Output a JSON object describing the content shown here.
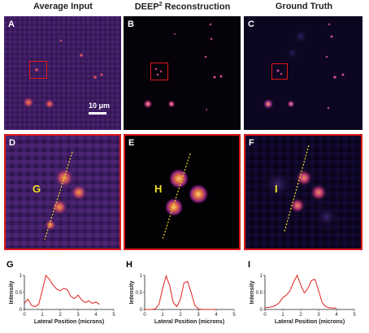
{
  "headers": {
    "col1": "Average Input",
    "col2_main": "DEEP",
    "col2_sup": "2",
    "col2_rest": " Reconstruction",
    "col3": "Ground Truth"
  },
  "panel_labels": {
    "A": "A",
    "B": "B",
    "C": "C",
    "D": "D",
    "E": "E",
    "F": "F",
    "G": "G",
    "H": "H",
    "I": "I"
  },
  "zoom_labels": {
    "G": "G",
    "H": "H",
    "I": "I"
  },
  "scale_bar": "10 μm",
  "colors": {
    "border_red": "#e01818",
    "line_yellow": "#f0e020",
    "plot_red": "#e02020"
  },
  "chart_data": [
    {
      "type": "line",
      "ylabel": "Intensity",
      "xlabel": "Lateral Position (microns)",
      "xlim": [
        0,
        5
      ],
      "ylim": [
        0,
        1
      ],
      "xticks": [
        "0",
        "1",
        "2",
        "3",
        "4",
        "5"
      ],
      "yticks": [
        "0",
        "0.5",
        "1"
      ],
      "x": [
        0.0,
        0.2,
        0.4,
        0.6,
        0.8,
        1.0,
        1.2,
        1.4,
        1.6,
        1.8,
        2.0,
        2.2,
        2.4,
        2.6,
        2.8,
        3.0,
        3.2,
        3.4,
        3.6,
        3.8,
        4.0,
        4.2
      ],
      "values": [
        0.18,
        0.3,
        0.12,
        0.08,
        0.15,
        0.55,
        1.0,
        0.88,
        0.72,
        0.6,
        0.55,
        0.62,
        0.58,
        0.38,
        0.32,
        0.42,
        0.28,
        0.2,
        0.25,
        0.18,
        0.22,
        0.15
      ]
    },
    {
      "type": "line",
      "ylabel": "Intensity",
      "xlabel": "Lateral Position (microns)",
      "xlim": [
        0,
        5
      ],
      "ylim": [
        0,
        1
      ],
      "xticks": [
        "0",
        "1",
        "2",
        "3",
        "4",
        "5"
      ],
      "yticks": [
        "0",
        "0.5",
        "1"
      ],
      "x": [
        0.0,
        0.2,
        0.4,
        0.6,
        0.8,
        1.0,
        1.2,
        1.4,
        1.6,
        1.8,
        2.0,
        2.2,
        2.4,
        2.6,
        2.8,
        3.0,
        3.2,
        3.4,
        3.6,
        3.8,
        4.0
      ],
      "values": [
        0.0,
        0.0,
        0.0,
        0.02,
        0.15,
        0.6,
        0.98,
        0.7,
        0.2,
        0.08,
        0.3,
        0.78,
        0.82,
        0.5,
        0.12,
        0.02,
        0.0,
        0.0,
        0.0,
        0.0,
        0.0
      ]
    },
    {
      "type": "line",
      "ylabel": "Intensity",
      "xlabel": "Lateral Position (microns)",
      "xlim": [
        0,
        5
      ],
      "ylim": [
        0,
        1
      ],
      "xticks": [
        "0",
        "1",
        "2",
        "3",
        "4",
        "5"
      ],
      "yticks": [
        "0",
        "0.5",
        "1"
      ],
      "x": [
        0.0,
        0.2,
        0.4,
        0.6,
        0.8,
        1.0,
        1.2,
        1.4,
        1.6,
        1.8,
        2.0,
        2.2,
        2.4,
        2.6,
        2.8,
        3.0,
        3.2,
        3.4,
        3.6,
        3.8,
        4.0
      ],
      "values": [
        0.05,
        0.06,
        0.08,
        0.12,
        0.2,
        0.35,
        0.42,
        0.55,
        0.8,
        1.0,
        0.72,
        0.48,
        0.62,
        0.85,
        0.88,
        0.55,
        0.2,
        0.08,
        0.05,
        0.04,
        0.04
      ]
    }
  ]
}
